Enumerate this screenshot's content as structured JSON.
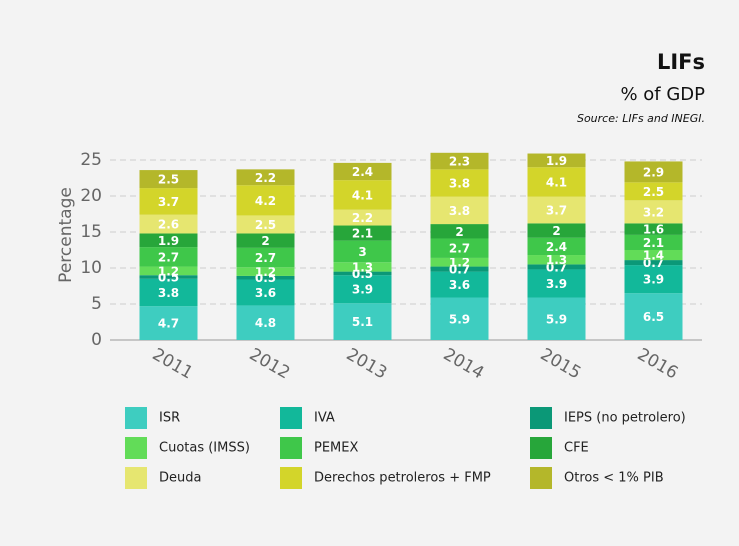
{
  "chart_data": {
    "type": "stacked_bar",
    "title": "LIFs",
    "subtitle": "% of GDP",
    "source": "Source: LIFs and INEGI.",
    "y_label": "Percentage",
    "categories": [
      "2011",
      "2012",
      "2013",
      "2014",
      "2015",
      "2016"
    ],
    "series": [
      {
        "name": "ISR",
        "color": "#3ecdc0",
        "values": [
          4.7,
          4.8,
          5.1,
          5.9,
          5.9,
          6.5
        ]
      },
      {
        "name": "IVA",
        "color": "#12b89a",
        "values": [
          3.8,
          3.6,
          3.9,
          3.6,
          3.9,
          3.9
        ]
      },
      {
        "name": "IEPS (no petrolero)",
        "color": "#0b9877",
        "values": [
          0.5,
          0.5,
          0.5,
          0.7,
          0.7,
          0.7
        ]
      },
      {
        "name": "Cuotas (IMSS)",
        "color": "#62dc58",
        "values": [
          1.2,
          1.2,
          1.3,
          1.2,
          1.3,
          1.4
        ]
      },
      {
        "name": "PEMEX",
        "color": "#3fc74a",
        "values": [
          2.7,
          2.7,
          3.0,
          2.7,
          2.4,
          2.1
        ]
      },
      {
        "name": "CFE",
        "color": "#27a63a",
        "values": [
          1.9,
          2.0,
          2.1,
          2.0,
          2.0,
          1.6
        ]
      },
      {
        "name": "Deuda",
        "color": "#e6e670",
        "values": [
          2.6,
          2.5,
          2.2,
          3.8,
          3.7,
          3.2
        ]
      },
      {
        "name": "Derechos petroleros + FMP",
        "color": "#d3d52a",
        "values": [
          3.7,
          4.2,
          4.1,
          3.8,
          4.1,
          2.5
        ]
      },
      {
        "name": "Otros < 1% PIB",
        "color": "#b4b72a",
        "values": [
          2.5,
          2.2,
          2.4,
          2.3,
          1.9,
          2.9
        ]
      }
    ],
    "ylim": [
      0,
      25
    ],
    "yticks": [
      0,
      5,
      10,
      15,
      20,
      25
    ],
    "grid": true
  }
}
